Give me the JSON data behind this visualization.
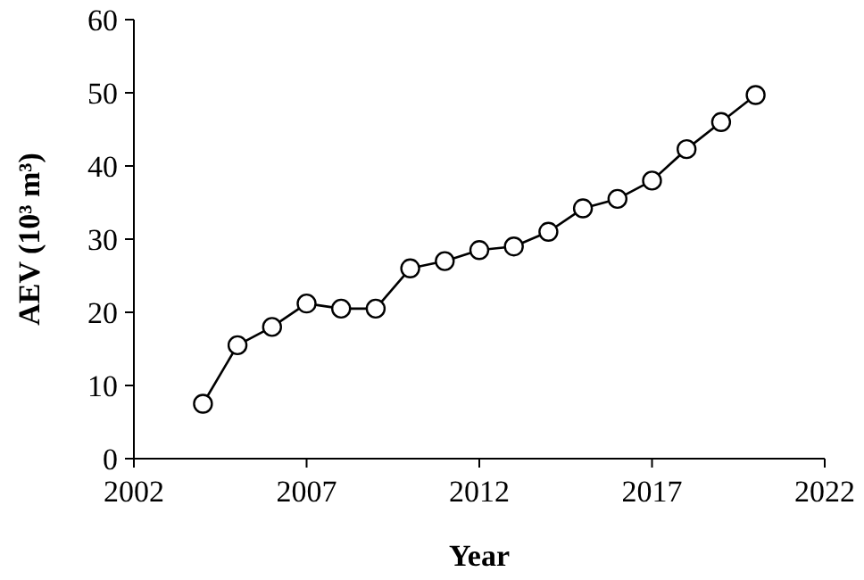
{
  "chart_data": {
    "type": "line",
    "xlabel": "Year",
    "ylabel": "AEV (10³ m³)",
    "x": [
      2004,
      2005,
      2006,
      2007,
      2008,
      2009,
      2010,
      2011,
      2012,
      2013,
      2014,
      2015,
      2016,
      2017,
      2018,
      2019,
      2020
    ],
    "series": [
      {
        "color": "#000000",
        "values": [
          7.5,
          15.5,
          18,
          21.2,
          20.5,
          20.5,
          26,
          27,
          28.5,
          29,
          31,
          34.2,
          35.5,
          38,
          42.3,
          46,
          49.7
        ]
      }
    ],
    "xlim": [
      2002,
      2022
    ],
    "xticks": [
      2002,
      2007,
      2012,
      2017,
      2022
    ],
    "ylim": [
      0,
      60
    ],
    "yticks": [
      0,
      10,
      20,
      30,
      40,
      50,
      60
    ],
    "marker": "circle",
    "line_style": "solid"
  }
}
